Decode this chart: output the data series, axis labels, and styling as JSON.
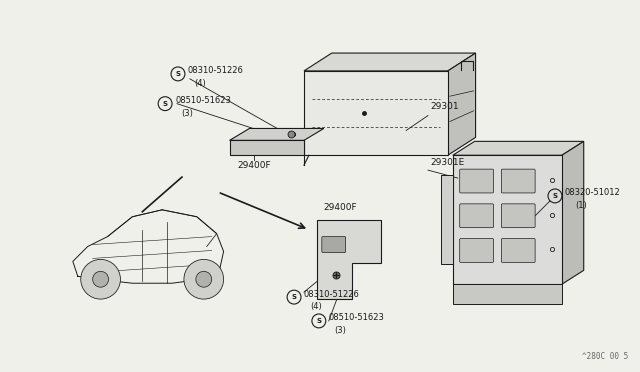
{
  "bg_color": "#f0f0eb",
  "line_color": "#1a1a1a",
  "text_color": "#1a1a1a",
  "watermark": "^280C 00 5",
  "labels": {
    "s1_top": "S 08310-51226",
    "s1_top_sub": "(4)",
    "s2_top": "S 08510-51623",
    "s2_top_sub": "(3)",
    "29400F_top": "29400F",
    "29301": "29301",
    "29301E": "29301E",
    "s3": "S 08320-51012",
    "s3_sub": "(1)",
    "29400F_bot": "29400F",
    "s1_bot": "S 08310-51226",
    "s1_bot_sub": "(4)",
    "s2_bot": "S 08510-51623",
    "s2_bot_sub": "(3)"
  }
}
